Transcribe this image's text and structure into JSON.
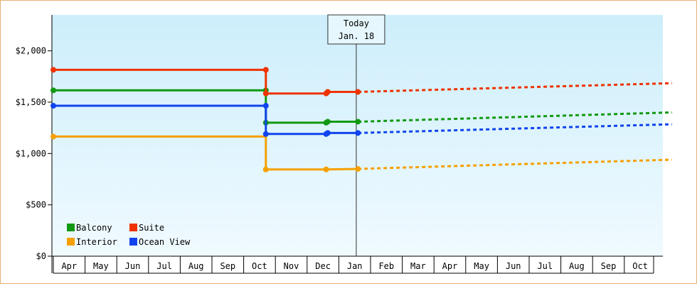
{
  "chart_data": {
    "type": "line",
    "title": "",
    "xlabel": "",
    "ylabel": "",
    "ylim": [
      0,
      2350
    ],
    "y_ticks": [
      {
        "value": 0,
        "label": "$0"
      },
      {
        "value": 500,
        "label": "$500"
      },
      {
        "value": 1000,
        "label": "$1,000"
      },
      {
        "value": 1500,
        "label": "$1,500"
      },
      {
        "value": 2000,
        "label": "$2,000"
      }
    ],
    "x_months": [
      "Apr",
      "May",
      "Jun",
      "Jul",
      "Aug",
      "Sep",
      "Oct",
      "Nov",
      "Dec",
      "Jan",
      "Feb",
      "Mar",
      "Apr",
      "May",
      "Jun",
      "Jul",
      "Aug",
      "Sep",
      "Oct"
    ],
    "grid": false,
    "background_gradient": [
      "#cdeefb",
      "#f0faff"
    ],
    "today_marker": {
      "line1": "Today",
      "line2": "Jan. 18",
      "position_months": 9.55
    },
    "legend_placement": "bottom-left",
    "series": [
      {
        "name": "Balcony",
        "color": "#119911",
        "points": [
          [
            0,
            1615
          ],
          [
            6.7,
            1615
          ],
          [
            6.7,
            1300
          ],
          [
            8.6,
            1300
          ],
          [
            8.65,
            1310
          ],
          [
            9.6,
            1310
          ]
        ],
        "markers": [
          [
            0,
            1615
          ],
          [
            6.7,
            1615
          ],
          [
            6.7,
            1300
          ],
          [
            8.6,
            1300
          ],
          [
            8.65,
            1310
          ],
          [
            9.6,
            1310
          ]
        ],
        "projection": [
          [
            9.6,
            1310
          ],
          [
            19.5,
            1400
          ]
        ]
      },
      {
        "name": "Suite",
        "color": "#ee3300",
        "points": [
          [
            0,
            1815
          ],
          [
            6.7,
            1815
          ],
          [
            6.7,
            1585
          ],
          [
            8.6,
            1585
          ],
          [
            8.65,
            1600
          ],
          [
            9.6,
            1600
          ]
        ],
        "markers": [
          [
            0,
            1815
          ],
          [
            6.7,
            1815
          ],
          [
            6.7,
            1585
          ],
          [
            8.6,
            1585
          ],
          [
            8.65,
            1600
          ],
          [
            9.6,
            1600
          ]
        ],
        "projection": [
          [
            9.6,
            1600
          ],
          [
            19.5,
            1685
          ]
        ]
      },
      {
        "name": "Interior",
        "color": "#f5a000",
        "points": [
          [
            0,
            1165
          ],
          [
            6.7,
            1165
          ],
          [
            6.7,
            845
          ],
          [
            8.6,
            845
          ],
          [
            9.6,
            850
          ]
        ],
        "markers": [
          [
            0,
            1165
          ],
          [
            6.7,
            845
          ],
          [
            8.6,
            845
          ],
          [
            9.6,
            850
          ]
        ],
        "projection": [
          [
            9.6,
            850
          ],
          [
            19.5,
            940
          ]
        ]
      },
      {
        "name": "Ocean View",
        "color": "#1144ee",
        "points": [
          [
            0,
            1465
          ],
          [
            6.7,
            1465
          ],
          [
            6.7,
            1190
          ],
          [
            8.6,
            1190
          ],
          [
            8.65,
            1200
          ],
          [
            9.6,
            1200
          ]
        ],
        "markers": [
          [
            0,
            1465
          ],
          [
            6.7,
            1465
          ],
          [
            6.7,
            1190
          ],
          [
            8.6,
            1190
          ],
          [
            8.65,
            1200
          ],
          [
            9.6,
            1200
          ]
        ],
        "projection": [
          [
            9.6,
            1200
          ],
          [
            19.5,
            1285
          ]
        ]
      }
    ]
  }
}
